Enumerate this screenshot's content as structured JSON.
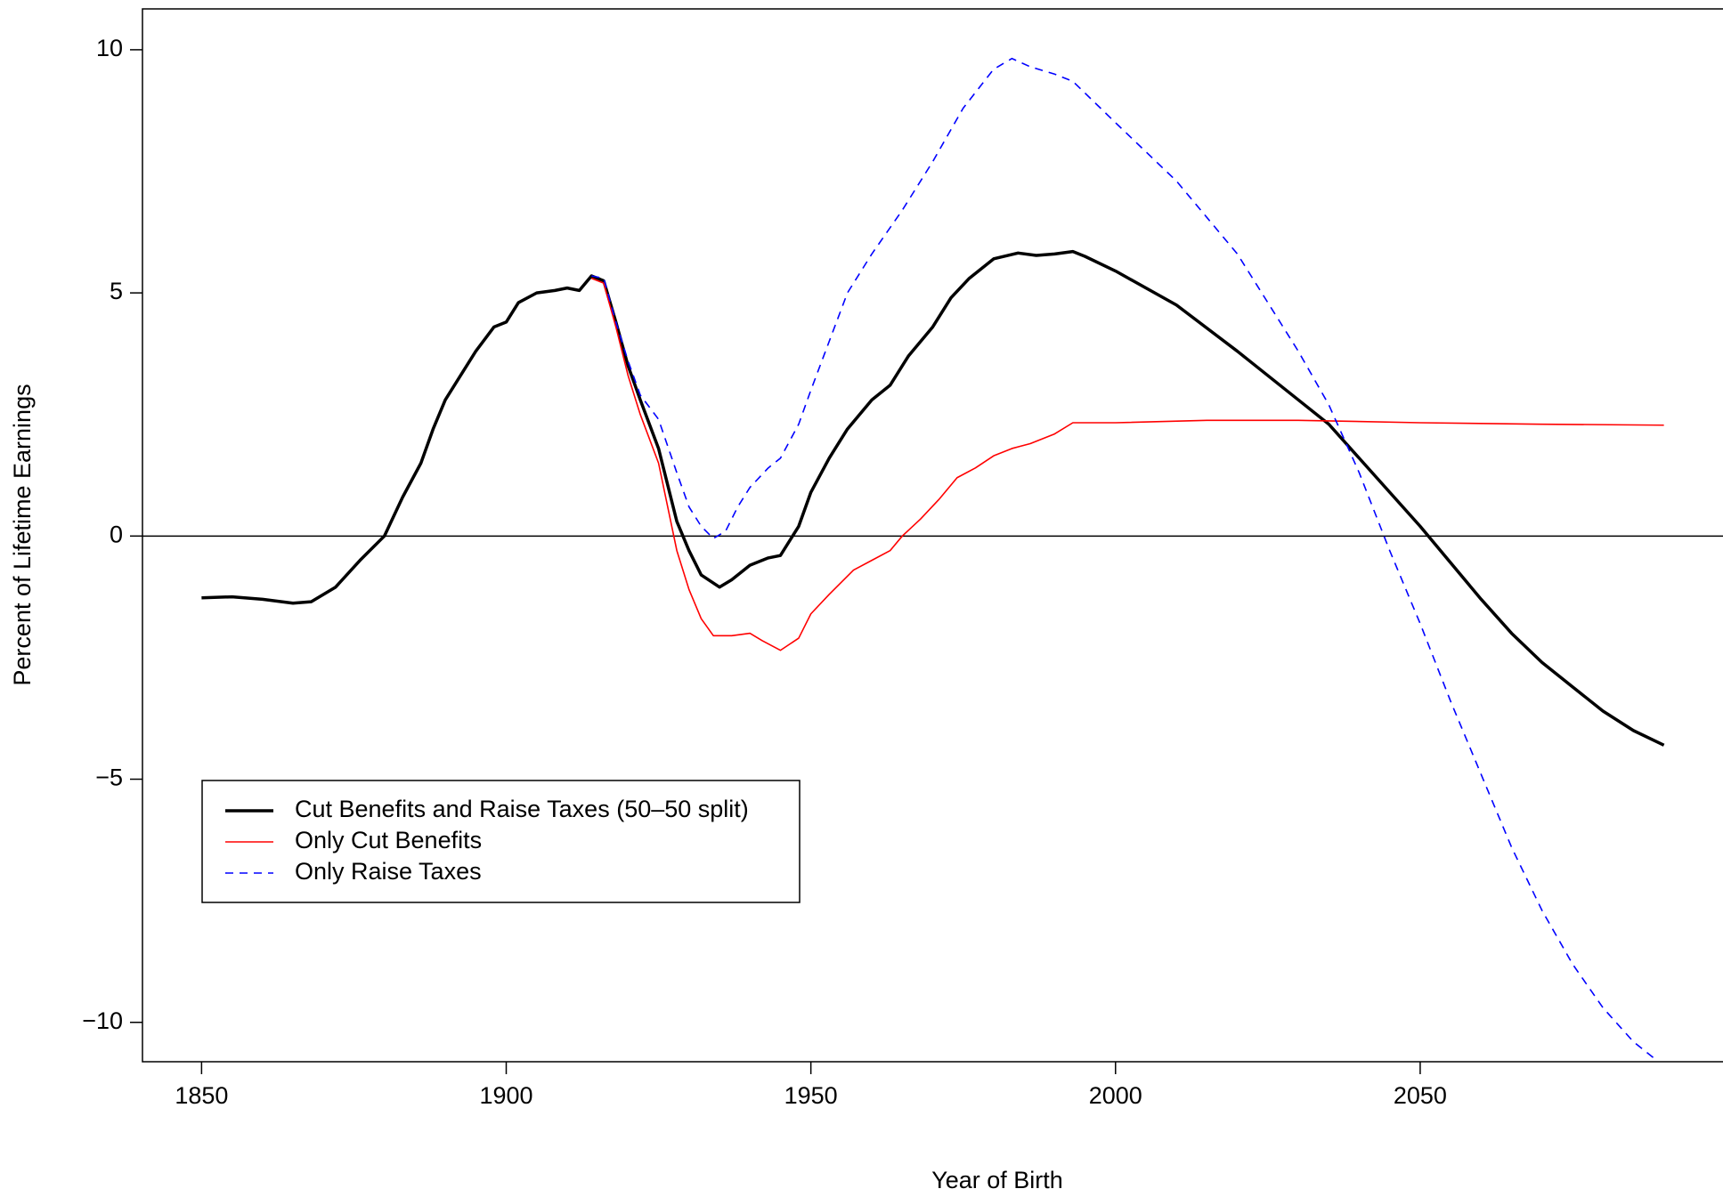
{
  "chart_data": {
    "type": "line",
    "xlabel": "Year of Birth",
    "ylabel": "Percent of Lifetime Earnings",
    "xlim": [
      1840.3,
      2099.7
    ],
    "ylim": [
      -10.81,
      10.84
    ],
    "xticks": [
      1850,
      1900,
      1950,
      2000,
      2050
    ],
    "yticks": [
      {
        "value": -10,
        "label": "−10"
      },
      {
        "value": -5,
        "label": "−5"
      },
      0,
      5,
      10
    ],
    "reference_line": 0,
    "legend": "lower left",
    "series": [
      {
        "name": "Cut Benefits and Raise Taxes (50–50 split)",
        "color": "#000000",
        "linewidth": 3.5,
        "linestyle": "solid",
        "x": [
          1850,
          1855,
          1860,
          1865,
          1868,
          1872,
          1876,
          1880,
          1883,
          1886,
          1888,
          1890,
          1892,
          1895,
          1898,
          1900,
          1902,
          1905,
          1908,
          1910,
          1912,
          1914,
          1916,
          1918,
          1920,
          1922,
          1925,
          1928,
          1930,
          1932,
          1935,
          1937,
          1940,
          1943,
          1945,
          1948,
          1950,
          1953,
          1956,
          1960,
          1963,
          1966,
          1970,
          1973,
          1976,
          1980,
          1984,
          1987,
          1990,
          1993,
          1995,
          2000,
          2010,
          2020,
          2030,
          2035,
          2040,
          2045,
          2050,
          2055,
          2060,
          2065,
          2070,
          2075,
          2080,
          2085,
          2090
        ],
        "values": [
          -1.27,
          -1.25,
          -1.3,
          -1.38,
          -1.35,
          -1.05,
          -0.5,
          0.0,
          0.8,
          1.5,
          2.2,
          2.8,
          3.2,
          3.8,
          4.3,
          4.4,
          4.8,
          5.0,
          5.05,
          5.1,
          5.05,
          5.35,
          5.25,
          4.4,
          3.5,
          2.8,
          1.8,
          0.3,
          -0.3,
          -0.8,
          -1.05,
          -0.9,
          -0.6,
          -0.45,
          -0.4,
          0.2,
          0.9,
          1.6,
          2.2,
          2.8,
          3.1,
          3.7,
          4.3,
          4.9,
          5.3,
          5.7,
          5.82,
          5.77,
          5.8,
          5.85,
          5.75,
          5.45,
          4.75,
          3.8,
          2.8,
          2.3,
          1.6,
          0.9,
          0.2,
          -0.55,
          -1.3,
          -2.0,
          -2.6,
          -3.1,
          -3.6,
          -4.0,
          -4.3
        ]
      },
      {
        "name": "Only Cut Benefits",
        "color": "#ff0000",
        "linewidth": 1.6,
        "linestyle": "solid",
        "x": [
          1914,
          1916,
          1918,
          1920,
          1922,
          1925,
          1928,
          1930,
          1932,
          1934,
          1937,
          1940,
          1942,
          1945,
          1948,
          1950,
          1953,
          1957,
          1960,
          1963,
          1965,
          1968,
          1971,
          1974,
          1977,
          1980,
          1983,
          1986,
          1990,
          1993,
          2000,
          2015,
          2030,
          2050,
          2070,
          2090
        ],
        "values": [
          5.3,
          5.2,
          4.3,
          3.3,
          2.5,
          1.5,
          -0.3,
          -1.1,
          -1.7,
          -2.05,
          -2.05,
          -2.0,
          -2.15,
          -2.35,
          -2.1,
          -1.6,
          -1.2,
          -0.7,
          -0.5,
          -0.3,
          0.0,
          0.35,
          0.75,
          1.2,
          1.4,
          1.65,
          1.8,
          1.9,
          2.1,
          2.33,
          2.33,
          2.38,
          2.38,
          2.33,
          2.3,
          2.28
        ]
      },
      {
        "name": "Only Raise Taxes",
        "color": "#0000ff",
        "linewidth": 1.6,
        "linestyle": "dashed",
        "x": [
          1914,
          1916,
          1918,
          1920,
          1922,
          1925,
          1928,
          1930,
          1932,
          1934,
          1936,
          1938,
          1940,
          1943,
          1945,
          1948,
          1950,
          1953,
          1956,
          1960,
          1965,
          1970,
          1975,
          1980,
          1983,
          1986,
          1990,
          1993,
          2000,
          2010,
          2020,
          2030,
          2035,
          2040,
          2045,
          2050,
          2055,
          2060,
          2065,
          2070,
          2075,
          2080,
          2085,
          2089
        ],
        "values": [
          5.35,
          5.3,
          4.4,
          3.6,
          2.9,
          2.4,
          1.3,
          0.6,
          0.2,
          -0.05,
          0.1,
          0.6,
          1.0,
          1.4,
          1.6,
          2.3,
          3.0,
          4.0,
          5.0,
          5.8,
          6.7,
          7.7,
          8.8,
          9.6,
          9.82,
          9.65,
          9.5,
          9.35,
          8.5,
          7.3,
          5.8,
          3.8,
          2.7,
          1.3,
          -0.3,
          -1.8,
          -3.4,
          -4.9,
          -6.4,
          -7.7,
          -8.8,
          -9.7,
          -10.4,
          -10.8
        ]
      }
    ]
  }
}
